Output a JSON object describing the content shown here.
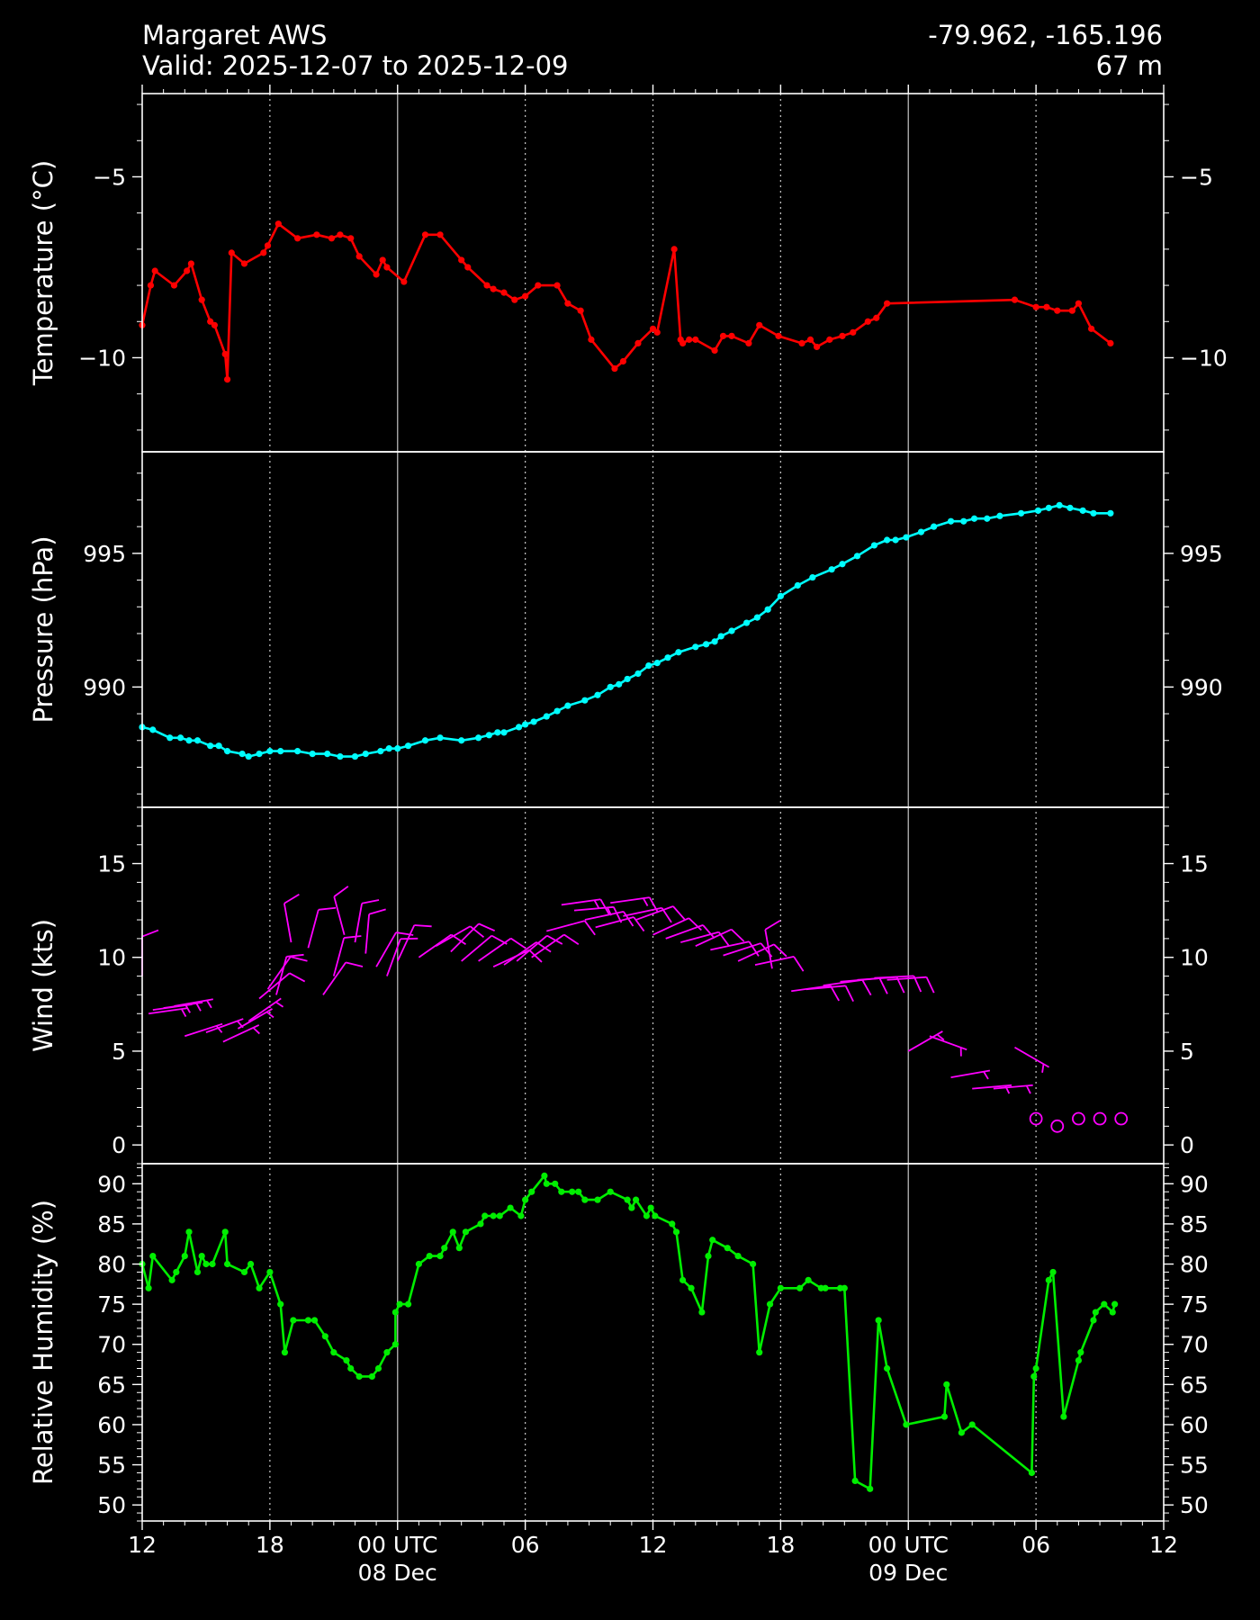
{
  "header": {
    "station": "Margaret AWS",
    "valid": "Valid: 2025-12-07 to 2025-12-09",
    "coords": "-79.962, -165.196",
    "elevation": "67 m"
  },
  "colors": {
    "background": "#000000",
    "foreground": "#ffffff",
    "temperature": "#ff0000",
    "pressure": "#00ffff",
    "wind": "#ff00ff",
    "humidity": "#00ee00"
  },
  "x_axis": {
    "range_hours": [
      0,
      48
    ],
    "ticks": [
      {
        "h": 0,
        "label": "12",
        "label2": ""
      },
      {
        "h": 6,
        "label": "18",
        "label2": ""
      },
      {
        "h": 12,
        "label": "00 UTC",
        "label2": "08 Dec"
      },
      {
        "h": 18,
        "label": "06",
        "label2": ""
      },
      {
        "h": 24,
        "label": "12",
        "label2": ""
      },
      {
        "h": 30,
        "label": "18",
        "label2": ""
      },
      {
        "h": 36,
        "label": "00 UTC",
        "label2": "09 Dec"
      },
      {
        "h": 42,
        "label": "06",
        "label2": ""
      },
      {
        "h": 48,
        "label": "12",
        "label2": ""
      }
    ],
    "day_lines_hours": [
      12,
      36
    ],
    "dotted_lines_hours": [
      6,
      18,
      24,
      30,
      42
    ]
  },
  "chart_data": [
    {
      "type": "line",
      "ylabel": "Temperature ($^\\circ$C)",
      "ylabel_display": "Temperature (°C)",
      "ylim": [
        -12.6,
        -2.7
      ],
      "yticks": [
        -5,
        -10
      ],
      "ytick_labels": [
        "−5",
        "−10"
      ],
      "minor_step": 1,
      "x_hours": [
        0,
        0.4,
        0.6,
        1.5,
        2.1,
        2.3,
        2.8,
        3.2,
        3.4,
        3.9,
        4.0,
        4.2,
        4.8,
        5.7,
        5.9,
        6.4,
        7.3,
        8.2,
        8.9,
        9.3,
        9.8,
        10.2,
        11.0,
        11.3,
        11.5,
        12.3,
        13.3,
        14.0,
        15.0,
        15.3,
        16.2,
        16.5,
        17.0,
        17.5,
        18.0,
        18.6,
        19.5,
        20.0,
        20.6,
        21.1,
        22.2,
        22.6,
        23.3,
        24.0,
        24.2,
        25.0,
        25.3,
        25.4,
        25.7,
        26.0,
        26.9,
        27.3,
        27.7,
        28.5,
        29.0,
        29.9,
        31.0,
        31.4,
        31.7,
        32.3,
        32.9,
        33.4,
        34.1,
        34.5,
        35.0,
        41.0,
        42.0,
        42.5,
        43.0,
        43.7,
        44.0,
        44.6,
        45.5
      ],
      "values": [
        -9.1,
        -8.0,
        -7.6,
        -8.0,
        -7.6,
        -7.4,
        -8.4,
        -9.0,
        -9.1,
        -9.9,
        -10.6,
        -7.1,
        -7.4,
        -7.1,
        -6.9,
        -6.3,
        -6.7,
        -6.6,
        -6.7,
        -6.6,
        -6.7,
        -7.2,
        -7.7,
        -7.3,
        -7.5,
        -7.9,
        -6.6,
        -6.6,
        -7.3,
        -7.5,
        -8.0,
        -8.1,
        -8.2,
        -8.4,
        -8.3,
        -8.0,
        -8.0,
        -8.5,
        -8.7,
        -9.5,
        -10.3,
        -10.1,
        -9.6,
        -9.2,
        -9.3,
        -7.0,
        -9.5,
        -9.6,
        -9.5,
        -9.5,
        -9.8,
        -9.4,
        -9.4,
        -9.6,
        -9.1,
        -9.4,
        -9.6,
        -9.5,
        -9.7,
        -9.5,
        -9.4,
        -9.3,
        -9.0,
        -8.9,
        -8.5,
        -8.4,
        -8.6,
        -8.6,
        -8.7,
        -8.7,
        -8.5,
        -9.2,
        -9.6
      ],
      "color": "#ff0000"
    },
    {
      "type": "line",
      "ylabel": "Pressure (hPa)",
      "ylim": [
        985.5,
        998.8
      ],
      "yticks": [
        990,
        995
      ],
      "ytick_labels": [
        "990",
        "995"
      ],
      "minor_step": 1,
      "x_hours": [
        0,
        0.5,
        1.3,
        1.8,
        2.2,
        2.6,
        3.2,
        3.6,
        4.0,
        4.7,
        5.0,
        5.5,
        6.0,
        6.5,
        7.3,
        8.0,
        8.7,
        9.3,
        10.0,
        10.5,
        11.2,
        11.6,
        12.0,
        12.5,
        13.3,
        14.0,
        15.0,
        15.8,
        16.3,
        16.7,
        17.0,
        17.7,
        18.0,
        18.4,
        19.0,
        19.5,
        20.0,
        20.8,
        21.4,
        22.0,
        22.4,
        22.8,
        23.3,
        23.8,
        24.2,
        24.7,
        25.2,
        26.0,
        26.5,
        26.9,
        27.2,
        27.7,
        28.4,
        28.9,
        29.4,
        30.0,
        30.8,
        31.5,
        32.4,
        32.9,
        33.6,
        34.4,
        35.0,
        35.4,
        35.9,
        36.6,
        37.2,
        38.0,
        38.6,
        39.1,
        39.7,
        40.3,
        41.3,
        42.1,
        42.6,
        43.1,
        43.6,
        44.2,
        44.7,
        45.5
      ],
      "values": [
        988.5,
        988.4,
        988.1,
        988.1,
        988.0,
        988.0,
        987.8,
        987.8,
        987.6,
        987.5,
        987.4,
        987.5,
        987.6,
        987.6,
        987.6,
        987.5,
        987.5,
        987.4,
        987.4,
        987.5,
        987.6,
        987.7,
        987.7,
        987.8,
        988.0,
        988.1,
        988.0,
        988.1,
        988.2,
        988.3,
        988.3,
        988.5,
        988.6,
        988.7,
        988.9,
        989.1,
        989.3,
        989.5,
        989.7,
        990.0,
        990.1,
        990.3,
        990.5,
        990.8,
        990.9,
        991.1,
        991.3,
        991.5,
        991.6,
        991.7,
        991.9,
        992.1,
        992.4,
        992.6,
        992.9,
        993.4,
        993.8,
        994.1,
        994.4,
        994.6,
        994.9,
        995.3,
        995.5,
        995.5,
        995.6,
        995.8,
        996.0,
        996.2,
        996.2,
        996.3,
        996.3,
        996.4,
        996.5,
        996.6,
        996.7,
        996.8,
        996.7,
        996.6,
        996.5,
        996.5
      ],
      "color": "#00ffff"
    },
    {
      "type": "barbs",
      "ylabel": "Wind (kts)",
      "ylim": [
        -1,
        18
      ],
      "yticks": [
        0,
        5,
        10,
        15
      ],
      "ytick_labels": [
        "0",
        "5",
        "10",
        "15"
      ],
      "minor_step": 1,
      "x_hours": [
        0,
        0.3,
        0.5,
        1.0,
        1.5,
        2.0,
        3.0,
        3.8,
        4.5,
        5.0,
        5.5,
        5.9,
        6.3,
        7.0,
        7.8,
        8.5,
        9.0,
        9.5,
        10.0,
        10.5,
        11.0,
        11.5,
        12.0,
        13.0,
        13.8,
        14.5,
        15.0,
        15.8,
        16.5,
        17.0,
        17.6,
        18.3,
        19.0,
        19.7,
        20.3,
        20.8,
        21.3,
        22.0,
        22.6,
        23.2,
        24.0,
        24.6,
        25.3,
        26.0,
        26.7,
        27.3,
        28.0,
        28.8,
        29.6,
        30.5,
        31.2,
        32.0,
        32.8,
        33.6,
        34.4,
        35.0,
        36.0,
        37.0,
        38.0,
        39.0,
        40.0,
        41.0,
        42.0,
        43.0,
        44.0,
        45.0,
        46.0
      ],
      "speeds": [
        9.0,
        7.0,
        7.2,
        7.3,
        7.4,
        5.8,
        6.0,
        5.5,
        6.2,
        6.6,
        7.8,
        8.3,
        8.0,
        10.8,
        10.5,
        8.0,
        9.0,
        11.2,
        10.8,
        10.2,
        9.5,
        9.0,
        9.8,
        10.0,
        10.6,
        10.3,
        9.8,
        9.8,
        9.5,
        9.6,
        9.8,
        10.0,
        11.4,
        12.8,
        12.5,
        12.0,
        11.6,
        12.9,
        12.2,
        12.0,
        11.2,
        11.0,
        10.8,
        10.6,
        10.4,
        10.1,
        9.8,
        9.6,
        9.4,
        8.2,
        8.3,
        8.5,
        8.7,
        8.8,
        8.9,
        8.8,
        5.0,
        5.8,
        3.6,
        3.0,
        3.0,
        5.2,
        1.4,
        1.0,
        1.4,
        1.4,
        1.4
      ],
      "angles_deg": [
        90,
        8,
        8,
        8,
        10,
        18,
        20,
        25,
        30,
        35,
        40,
        55,
        75,
        100,
        75,
        55,
        75,
        105,
        80,
        85,
        60,
        70,
        65,
        35,
        30,
        45,
        40,
        35,
        25,
        35,
        40,
        35,
        15,
        8,
        5,
        12,
        15,
        8,
        12,
        20,
        25,
        20,
        15,
        25,
        12,
        18,
        25,
        12,
        100,
        8,
        5,
        8,
        5,
        4,
        3,
        4,
        30,
        -20,
        10,
        5,
        5,
        -30,
        0,
        0,
        0,
        0,
        0
      ],
      "calm_threshold": 2,
      "color": "#ff00ff"
    },
    {
      "type": "line",
      "ylabel": "Relative Humidity (%)",
      "ylim": [
        48,
        92.5
      ],
      "yticks": [
        50,
        55,
        60,
        65,
        70,
        75,
        80,
        85,
        90
      ],
      "ytick_labels": [
        "50",
        "55",
        "60",
        "65",
        "70",
        "75",
        "80",
        "85",
        "90"
      ],
      "minor_step": 1,
      "x_hours": [
        0,
        0.3,
        0.5,
        1.4,
        1.6,
        2.0,
        2.2,
        2.6,
        2.8,
        3.0,
        3.3,
        3.9,
        4.0,
        4.8,
        5.1,
        5.5,
        6.0,
        6.5,
        6.7,
        7.1,
        7.8,
        8.1,
        8.6,
        9.0,
        9.6,
        9.8,
        10.2,
        10.8,
        11.1,
        11.5,
        11.9,
        11.9,
        12.1,
        12.5,
        13.0,
        13.5,
        14.0,
        14.2,
        14.6,
        14.9,
        15.2,
        15.9,
        16.1,
        16.5,
        16.8,
        17.3,
        17.8,
        18.0,
        18.3,
        18.9,
        19.0,
        19.4,
        19.7,
        20.2,
        20.5,
        20.8,
        21.4,
        22.0,
        22.8,
        23.0,
        23.2,
        23.7,
        23.9,
        24.1,
        24.9,
        25.1,
        25.4,
        25.8,
        26.3,
        26.6,
        26.8,
        27.5,
        28.0,
        28.7,
        29.0,
        29.5,
        30.0,
        30.9,
        31.3,
        31.9,
        32.1,
        32.8,
        33.0,
        33.5,
        34.2,
        34.6,
        35.0,
        35.9,
        37.7,
        37.8,
        38.5,
        39.0,
        41.8,
        41.9,
        42.0,
        42.6,
        42.8,
        43.3,
        44.0,
        44.1,
        44.7,
        44.8,
        45.2,
        45.6,
        45.7
      ],
      "values": [
        80,
        77,
        81,
        78,
        79,
        81,
        84,
        79,
        81,
        80,
        80,
        84,
        80,
        79,
        80,
        77,
        79,
        75,
        69,
        73,
        73,
        73,
        71,
        69,
        68,
        67,
        66,
        66,
        67,
        69,
        70,
        74,
        75,
        75,
        80,
        81,
        81,
        82,
        84,
        82,
        84,
        85,
        86,
        86,
        86,
        87,
        86,
        88,
        89,
        91,
        90,
        90,
        89,
        89,
        89,
        88,
        88,
        89,
        88,
        87,
        88,
        86,
        87,
        86,
        85,
        84,
        78,
        77,
        74,
        81,
        83,
        82,
        81,
        80,
        69,
        75,
        77,
        77,
        78,
        77,
        77,
        77,
        77,
        53,
        52,
        73,
        67,
        60,
        61,
        65,
        59,
        60,
        54,
        66,
        67,
        78,
        79,
        61,
        68,
        69,
        73,
        74,
        75,
        74,
        75
      ],
      "color": "#00ee00"
    }
  ]
}
